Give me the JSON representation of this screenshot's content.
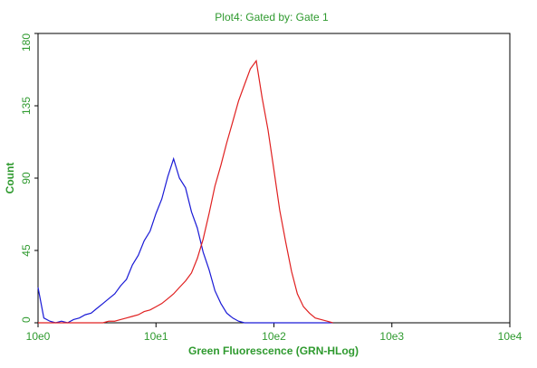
{
  "chart_data": {
    "type": "line",
    "title": "Plot4:  Gated by: Gate 1",
    "x_label": "Green Fluorescence (GRN-HLog)",
    "y_label": "Count",
    "x_scale": "log",
    "xlim": [
      1,
      10000
    ],
    "xticks": [
      {
        "value": 1,
        "label": "10e0"
      },
      {
        "value": 10,
        "label": "10e1"
      },
      {
        "value": 100,
        "label": "10e2"
      },
      {
        "value": 1000,
        "label": "10e3"
      },
      {
        "value": 10000,
        "label": "10e4"
      }
    ],
    "ylim": [
      0,
      180
    ],
    "yticks": [
      0,
      45,
      90,
      135,
      180
    ],
    "x": [
      1,
      1.12,
      1.26,
      1.41,
      1.58,
      1.78,
      2,
      2.24,
      2.51,
      2.82,
      3.16,
      3.55,
      3.98,
      4.47,
      5.01,
      5.62,
      6.31,
      7.08,
      7.94,
      8.91,
      10,
      11.2,
      12.6,
      14.1,
      15.8,
      17.8,
      20,
      22.4,
      25.1,
      28.2,
      31.6,
      35.5,
      39.8,
      44.7,
      50.1,
      56.2,
      63.1,
      70.8,
      79.4,
      89.1,
      100,
      112,
      126,
      141,
      158,
      178,
      200,
      224,
      251,
      282,
      316
    ],
    "series": [
      {
        "color": "#1a1ad6",
        "values": [
          22,
          3,
          1,
          0,
          1,
          0,
          2,
          3,
          5,
          6,
          9,
          12,
          15,
          18,
          23,
          27,
          36,
          42,
          51,
          57,
          68,
          77,
          91,
          102,
          90,
          84,
          69,
          59,
          44,
          33,
          20,
          12,
          6,
          3,
          1,
          0,
          0,
          0,
          0,
          0,
          0,
          0,
          0,
          0,
          0,
          0,
          0,
          0,
          0,
          0,
          0
        ]
      },
      {
        "color": "#e02020",
        "values": [
          0,
          0,
          0,
          0,
          0,
          0,
          0,
          0,
          0,
          0,
          0,
          0,
          1,
          1,
          2,
          3,
          4,
          5,
          7,
          8,
          10,
          12,
          15,
          18,
          22,
          26,
          31,
          40,
          52,
          68,
          85,
          98,
          112,
          125,
          138,
          148,
          158,
          163,
          140,
          120,
          95,
          70,
          50,
          32,
          18,
          10,
          6,
          3,
          2,
          1,
          0
        ]
      }
    ]
  }
}
